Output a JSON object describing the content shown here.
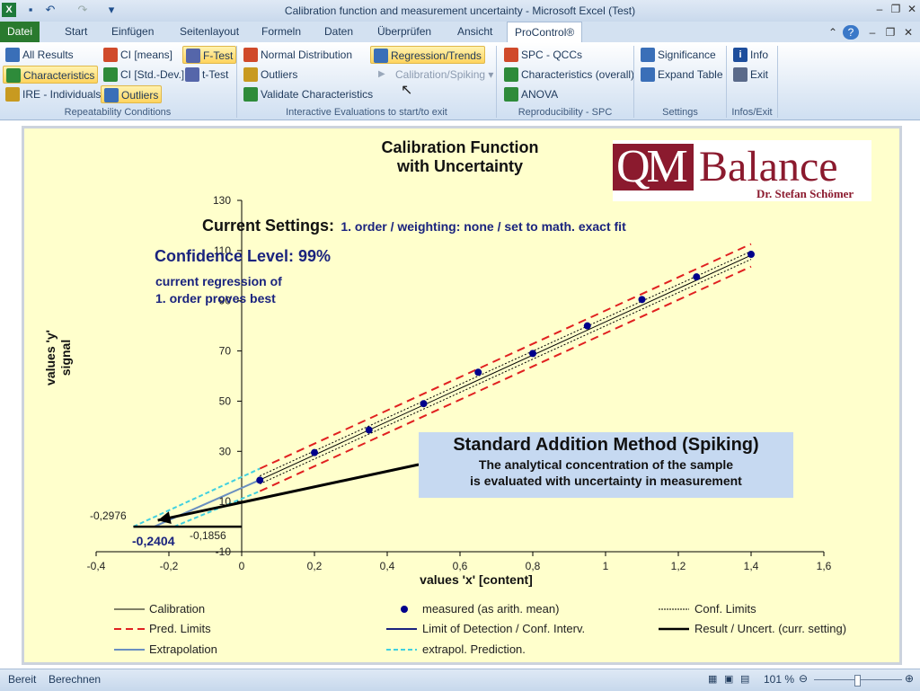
{
  "window": {
    "title": "Calibration function and measurement uncertainty  -  Microsoft Excel (Test)",
    "icons": [
      "excel-icon",
      "save-icon",
      "undo-icon",
      "redo-icon",
      "customize-icon"
    ]
  },
  "tabs": [
    "Datei",
    "Start",
    "Einfügen",
    "Seitenlayout",
    "Formeln",
    "Daten",
    "Überprüfen",
    "Ansicht",
    "ProControl®"
  ],
  "ribbon": {
    "repeatability": {
      "label": "Repeatability Conditions",
      "all_results": "All Results",
      "characteristics": "Characteristics",
      "ire_individuals": "IRE - Individuals",
      "ci_means": "CI [means]",
      "ci_std_dev": "CI [Std.-Dev.]",
      "outliers": "Outliers",
      "f_test": "F-Test",
      "t_test": "t-Test"
    },
    "interactive": {
      "label": "Interactive Evaluations to start/to exit",
      "normal_distribution": "Normal Distribution",
      "outliers": "Outliers",
      "validate_characteristics": "Validate Characteristics",
      "regression_trends": "Regression/Trends",
      "calibration_spiking": "Calibration/Spiking"
    },
    "reproducibility": {
      "label": "Reproducibility - SPC",
      "spc_qccs": "SPC - QCCs",
      "characteristics_overall": "Characteristics (overall)",
      "anova": "ANOVA"
    },
    "settings": {
      "label": "Settings",
      "significance": "Significance",
      "expand_table": "Expand Table"
    },
    "infos": {
      "label": "Infos/Exit",
      "info": "Info",
      "exit": "Exit"
    }
  },
  "logo": {
    "main": "QMBalance",
    "sub": "Dr. Stefan Schömer"
  },
  "chart_data": {
    "type": "scatter",
    "title_line1": "Calibration Function",
    "title_line2": "with Uncertainty",
    "settings_label": "Current Settings:",
    "settings_value": "1. order / weighting: none / set to math. exact fit",
    "confidence_level": "Confidence Level: 99%",
    "regression_note_1": "current regression of",
    "regression_note_2": "1. order proves best",
    "xlabel": "values 'x' [content]",
    "ylabel_1": "values 'y'",
    "ylabel_2": "signal",
    "xlim": [
      -0.4,
      1.6
    ],
    "ylim": [
      -10,
      130
    ],
    "x_ticks": [
      "-0,4",
      "-0,2",
      "0",
      "0,2",
      "0,4",
      "0,6",
      "0,8",
      "1",
      "1,2",
      "1,4",
      "1,6"
    ],
    "y_ticks": [
      "-10",
      "10",
      "30",
      "50",
      "70",
      "90",
      "110",
      "130"
    ],
    "measured_x": [
      0.05,
      0.2,
      0.35,
      0.5,
      0.65,
      0.8,
      0.95,
      1.1,
      1.25,
      1.4
    ],
    "measured_y": [
      18.5,
      29.5,
      38.5,
      49,
      61.5,
      69,
      80,
      90.5,
      99.5,
      108.5
    ],
    "calibration": {
      "intercept": 15.3,
      "slope": 66.3
    },
    "annotation_values": {
      "ext_lower": "-0,2976",
      "ext_upper": "-0,1856",
      "result": "-0,2404"
    },
    "annotation_box": {
      "heading": "Standard Addition Method (Spiking)",
      "line1": "The analytical concentration of the sample",
      "line2": "is evaluated with uncertainty in measurement"
    },
    "legend": {
      "calibration": "Calibration",
      "measured": "measured (as arith. mean)",
      "conf_limits": "Conf. Limits",
      "pred_limits": "Pred. Limits",
      "lod": "Limit of Detection / Conf. Interv.",
      "result_uncert": "Result / Uncert. (curr. setting)",
      "extrapolation": "Extrapolation",
      "extrapol_prediction": "extrapol. Prediction."
    },
    "colors": {
      "calibration": "#000000",
      "measured": "#00008b",
      "pred_limits": "#e02020",
      "extrapolation": "#6a8fc0",
      "extrapol_prediction": "#40d0e0",
      "annotation_box": "#c6d9f1"
    }
  },
  "status": {
    "ready": "Bereit",
    "calculate": "Berechnen",
    "zoom": "101 %"
  }
}
